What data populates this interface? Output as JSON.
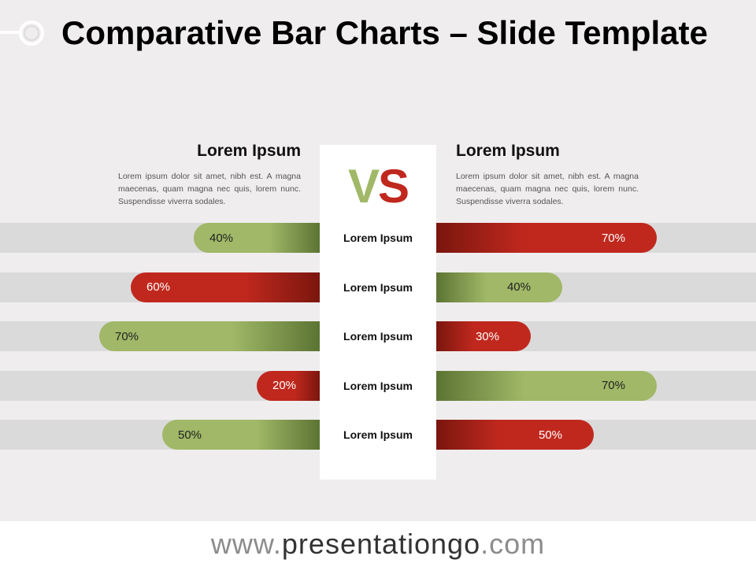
{
  "title": "Comparative Bar Charts – Slide Template",
  "vs": {
    "v": "V",
    "s": "S"
  },
  "colors": {
    "green": "#a0b867",
    "green_dark": "#5c7433",
    "red": "#c0281e",
    "red_dark": "#7a160e",
    "track": "#dadada",
    "panel": "#ffffff"
  },
  "left": {
    "heading": "Lorem Ipsum",
    "description": "Lorem ipsum dolor sit amet, nibh est. A magna maecenas, quam magna nec quis, lorem nunc. Suspendisse viverra sodales."
  },
  "right": {
    "heading": "Lorem Ipsum",
    "description": "Lorem ipsum dolor sit amet, nibh est. A magna maecenas, quam magna nec quis, lorem nunc. Suspendisse viverra sodales."
  },
  "chart_data": {
    "type": "bar",
    "orientation": "horizontal",
    "categories": [
      "Lorem Ipsum",
      "Lorem Ipsum",
      "Lorem Ipsum",
      "Lorem Ipsum",
      "Lorem Ipsum"
    ],
    "series": [
      {
        "values": [
          40,
          60,
          70,
          20,
          50
        ],
        "labels": [
          "40%",
          "60%",
          "70%",
          "20%",
          "50%"
        ],
        "colors": [
          "green",
          "red",
          "green",
          "red",
          "green"
        ]
      },
      {
        "values": [
          70,
          40,
          30,
          70,
          50
        ],
        "labels": [
          "70%",
          "40%",
          "30%",
          "70%",
          "50%"
        ],
        "colors": [
          "red",
          "green",
          "red",
          "green",
          "red"
        ]
      }
    ],
    "xlim": [
      0,
      100
    ]
  },
  "footer": {
    "prefix": "www.",
    "brand": "presentationgo",
    "suffix": ".com"
  }
}
